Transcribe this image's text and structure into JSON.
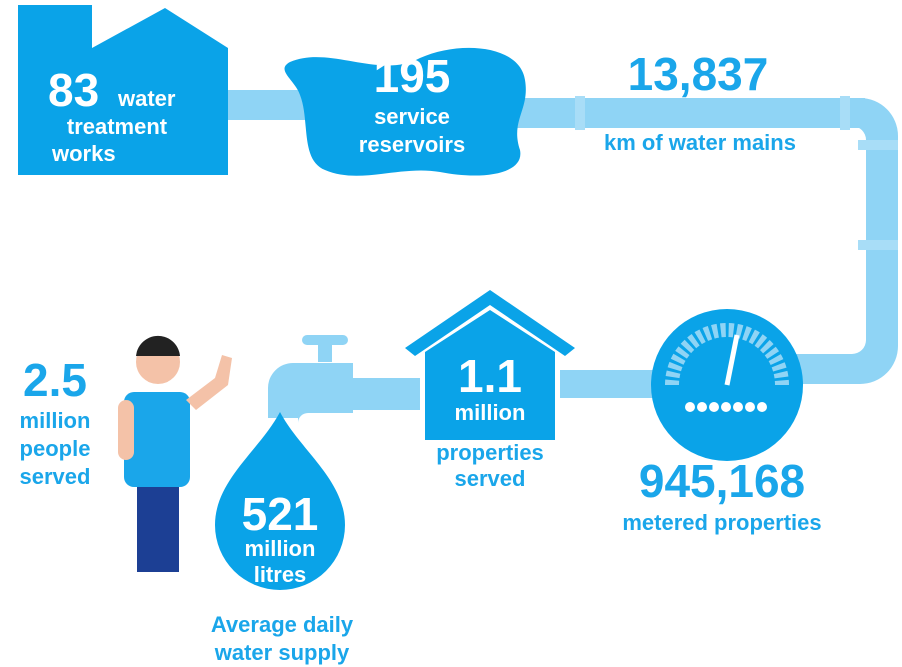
{
  "stats": [
    {
      "number": "83",
      "lines": [
        "water",
        "treatment",
        "works"
      ]
    },
    {
      "number": "195",
      "lines": [
        "service",
        "reservoirs"
      ]
    },
    {
      "number": "13,837",
      "lines": [
        "km of water mains"
      ]
    },
    {
      "number": "945,168",
      "lines": [
        "metered properties"
      ]
    },
    {
      "number": "1.1",
      "lines": [
        "million",
        "properties",
        "served"
      ]
    },
    {
      "number": "521",
      "lines": [
        "million",
        "litres",
        "Average daily",
        "water supply"
      ]
    },
    {
      "number": "2.5",
      "lines": [
        "million",
        "people",
        "served"
      ]
    }
  ]
}
